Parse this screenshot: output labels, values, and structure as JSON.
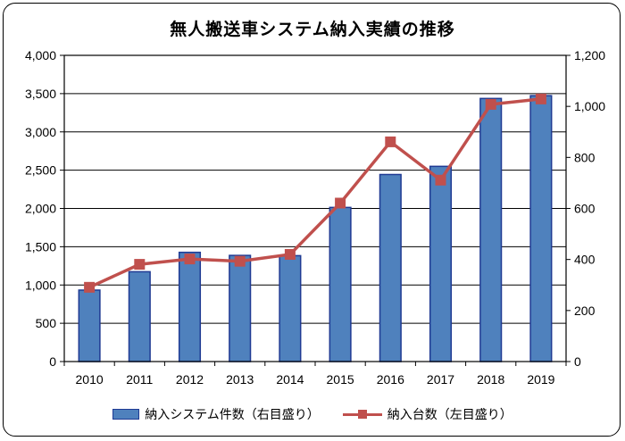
{
  "title": "無人搬送車システム納入実績の推移",
  "colors": {
    "bar": "#4f81bd",
    "bar_edge": "#1f3a93",
    "line": "#c0504d"
  },
  "chart_data": {
    "type": "bar+line",
    "categories": [
      "2010",
      "2011",
      "2012",
      "2013",
      "2014",
      "2015",
      "2016",
      "2017",
      "2018",
      "2019"
    ],
    "series": [
      {
        "name": "納入システム件数（右目盛り）",
        "type": "bar",
        "axis": "right",
        "values": [
          280,
          352,
          428,
          416,
          415,
          604,
          733,
          765,
          1031,
          1042
        ]
      },
      {
        "name": "納入台数（左目盛り）",
        "type": "line",
        "axis": "left",
        "values": [
          970,
          1270,
          1340,
          1310,
          1400,
          2070,
          2870,
          2370,
          3360,
          3430
        ]
      }
    ],
    "y_left": {
      "min": 0,
      "max": 4000,
      "ticks": [
        "0",
        "500",
        "1,000",
        "1,500",
        "2,000",
        "2,500",
        "3,000",
        "3,500",
        "4,000"
      ]
    },
    "y_right": {
      "min": 0,
      "max": 1200,
      "ticks": [
        "0",
        "200",
        "400",
        "600",
        "800",
        "1,000",
        "1,200"
      ]
    },
    "grid": true,
    "legend": "bottom"
  }
}
